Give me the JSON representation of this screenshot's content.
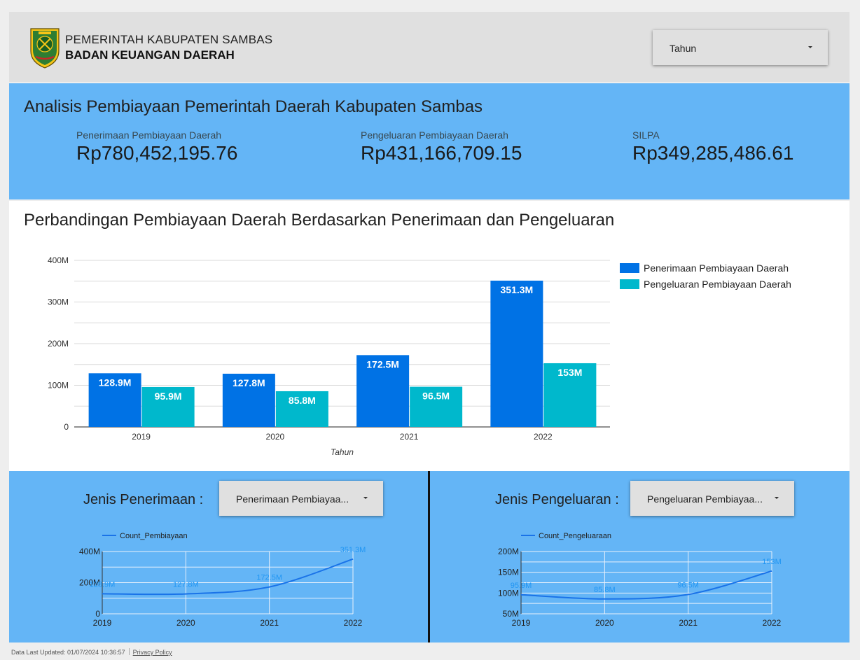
{
  "header": {
    "org_line1": "PEMERINTAH KABUPATEN SAMBAS",
    "org_line2": "BADAN KEUANGAN DAERAH",
    "logo_icon": "sambas-regency-crest-icon",
    "year_filter_label": "Tahun"
  },
  "summary": {
    "title": "Analisis Pembiayaan Pemerintah Daerah Kabupaten Sambas",
    "kpis": [
      {
        "label": "Penerimaan Pembiayaan Daerah",
        "value": "Rp780,452,195.76"
      },
      {
        "label": "Pengeluaran Pembiayaan Daerah",
        "value": "Rp431,166,709.15"
      },
      {
        "label": "SILPA",
        "value": "Rp349,285,486.61"
      }
    ]
  },
  "colors": {
    "header_bg": "#e0e0e0",
    "panel_bg": "#64b5f6",
    "series_penerimaan": "#0072e5",
    "series_pengeluaran": "#00b8cc",
    "line_series": "#1a73e8",
    "line_label": "#2196f3"
  },
  "bottom": {
    "left": {
      "label": "Jenis Penerimaan :",
      "dropdown": "Penerimaan Pembiayaa..."
    },
    "right": {
      "label": "Jenis Pengeluaran :",
      "dropdown": "Pengeluaran Pembiayaa..."
    }
  },
  "footer": {
    "updated": "Data Last Updated: 01/07/2024 10:36:57",
    "privacy": "Privacy Policy"
  },
  "chart_data": [
    {
      "type": "bar",
      "title": "Perbandingan Pembiayaan Daerah Berdasarkan Penerimaan dan Pengeluaran",
      "xlabel": "Tahun",
      "ylabel": "",
      "categories": [
        "2019",
        "2020",
        "2021",
        "2022"
      ],
      "ylim": [
        0,
        400000000
      ],
      "yticks": [
        "0",
        "100M",
        "200M",
        "300M",
        "400M"
      ],
      "grid": true,
      "legend_position": "right",
      "series": [
        {
          "name": "Penerimaan Pembiayaan Daerah",
          "values": [
            128900000,
            127800000,
            172500000,
            351300000
          ],
          "labels": [
            "128.9M",
            "127.8M",
            "172.5M",
            "351.3M"
          ]
        },
        {
          "name": "Pengeluaran Pembiayaan Daerah",
          "values": [
            95900000,
            85800000,
            96500000,
            153000000
          ],
          "labels": [
            "95.9M",
            "85.8M",
            "96.5M",
            "153M"
          ]
        }
      ]
    },
    {
      "type": "line",
      "categories": [
        "2019",
        "2020",
        "2021",
        "2022"
      ],
      "ylim": [
        0,
        400000000
      ],
      "yticks": [
        "0",
        "200M",
        "400M"
      ],
      "grid": true,
      "legend_position": "top-left",
      "series": [
        {
          "name": "Count_Pembiayaan",
          "values": [
            128900000,
            127800000,
            172500000,
            351300000
          ],
          "labels": [
            "128.9M",
            "127.8M",
            "172.5M",
            "351.3M"
          ]
        }
      ]
    },
    {
      "type": "line",
      "categories": [
        "2019",
        "2020",
        "2021",
        "2022"
      ],
      "ylim": [
        50000000,
        200000000
      ],
      "yticks": [
        "50M",
        "100M",
        "150M",
        "200M"
      ],
      "grid": true,
      "legend_position": "top-left",
      "series": [
        {
          "name": "Count_Pengeluaraan",
          "values": [
            95900000,
            85800000,
            96500000,
            153000000
          ],
          "labels": [
            "95.9M",
            "85.8M",
            "96.5M",
            "153M"
          ]
        }
      ]
    }
  ]
}
